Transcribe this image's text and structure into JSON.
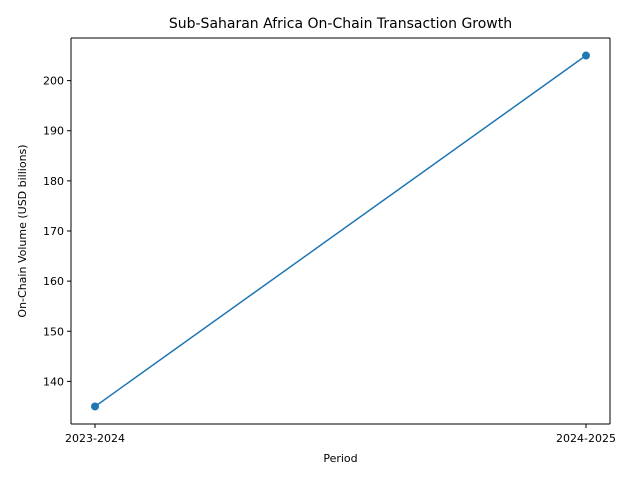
{
  "chart_data": {
    "type": "line",
    "title": "Sub-Saharan Africa On-Chain Transaction Growth",
    "xlabel": "Period",
    "ylabel": "On-Chain Volume (USD billions)",
    "categories": [
      "2023-2024",
      "2024-2025"
    ],
    "series": [
      {
        "values": [
          135,
          205
        ],
        "color": "#1f77b4",
        "marker": "circle"
      }
    ],
    "ylim": [
      131.5,
      208.5
    ],
    "yticks": [
      140,
      150,
      160,
      170,
      180,
      190,
      200
    ],
    "grid": false,
    "legend": "none"
  }
}
